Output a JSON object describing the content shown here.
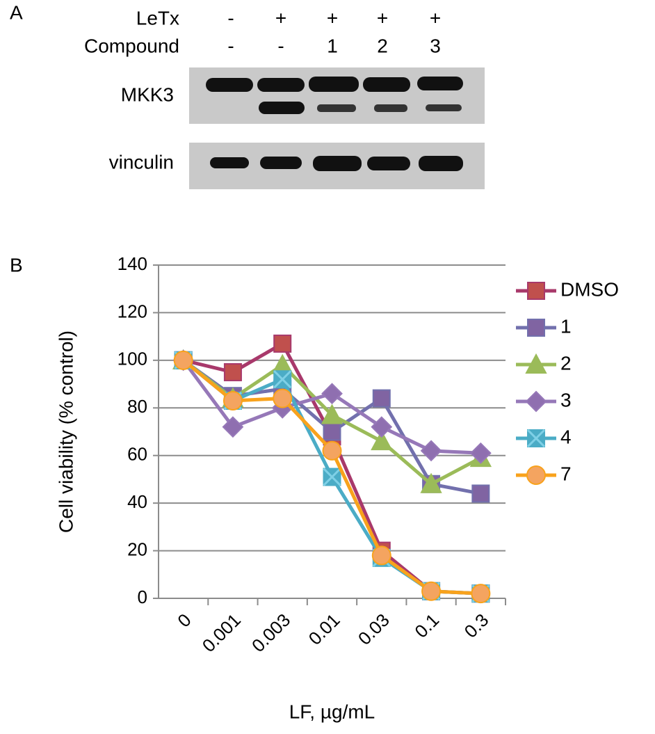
{
  "panel_a": {
    "label": "A",
    "rows": [
      {
        "name": "LeTx",
        "values": [
          "-",
          "+",
          "+",
          "+",
          "+"
        ]
      },
      {
        "name": "Compound",
        "values": [
          "-",
          "-",
          "1",
          "2",
          "3"
        ]
      }
    ],
    "blots": [
      "MKK3",
      "vinculin"
    ]
  },
  "chart_data": {
    "type": "line",
    "panel_label": "B",
    "ylabel": "Cell viability (% control)",
    "xlabel": "LF, µg/mL",
    "categories": [
      "0",
      "0.001",
      "0.003",
      "0.01",
      "0.03",
      "0.1",
      "0.3"
    ],
    "ylim": [
      0,
      140
    ],
    "yticks": [
      0,
      20,
      40,
      60,
      80,
      100,
      120,
      140
    ],
    "grid": true,
    "legend": "right",
    "series": [
      {
        "name": "DMSO",
        "color": "#a8396b",
        "marker_color": "#c0504d",
        "marker": "square",
        "values": [
          100,
          95,
          107,
          68,
          20,
          3,
          2
        ]
      },
      {
        "name": "1",
        "color": "#7270ad",
        "marker_color": "#8064a2",
        "marker": "square",
        "values": [
          100,
          85,
          88,
          70,
          84,
          48,
          44
        ]
      },
      {
        "name": "2",
        "color": "#9bbb59",
        "marker_color": "#9bbb59",
        "marker": "triangle",
        "values": [
          100,
          84,
          98,
          77,
          66,
          48,
          59
        ]
      },
      {
        "name": "3",
        "color": "#9678b8",
        "marker_color": "#8f6fb0",
        "marker": "diamond",
        "values": [
          100,
          72,
          80,
          86,
          72,
          62,
          61
        ]
      },
      {
        "name": "4",
        "color": "#4bacc6",
        "marker_color": "#4bacc6",
        "marker": "xsquare",
        "values": [
          100,
          83,
          92,
          51,
          17,
          3,
          2
        ]
      },
      {
        "name": "7",
        "color": "#f8a21c",
        "marker_color": "#f4a460",
        "marker": "circle",
        "values": [
          100,
          83,
          84,
          62,
          18,
          3,
          2
        ]
      }
    ]
  }
}
